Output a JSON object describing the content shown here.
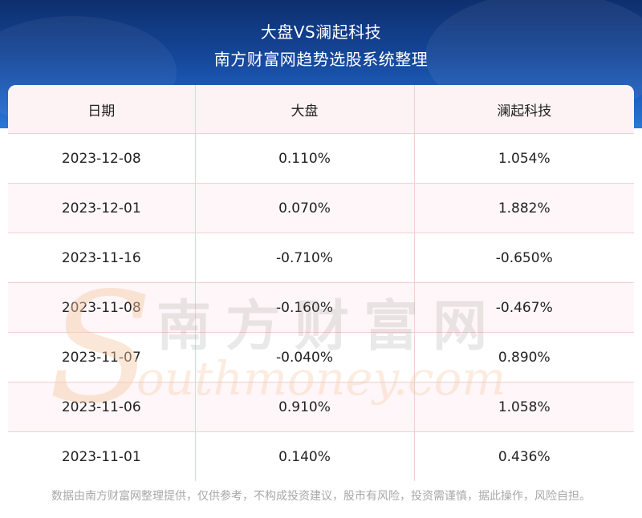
{
  "header": {
    "title_line1": "大盘VS澜起科技",
    "title_line2": "南方财富网趋势选股系统整理"
  },
  "table": {
    "columns": [
      "日期",
      "大盘",
      "澜起科技"
    ],
    "rows": [
      {
        "date": "2023-12-08",
        "market": "0.110%",
        "stock": "1.054%"
      },
      {
        "date": "2023-12-01",
        "market": "0.070%",
        "stock": "1.882%"
      },
      {
        "date": "2023-11-16",
        "market": "-0.710%",
        "stock": "-0.650%"
      },
      {
        "date": "2023-11-08",
        "market": "-0.160%",
        "stock": "-0.467%"
      },
      {
        "date": "2023-11-07",
        "market": "-0.040%",
        "stock": "0.890%"
      },
      {
        "date": "2023-11-06",
        "market": "0.910%",
        "stock": "1.058%"
      },
      {
        "date": "2023-11-01",
        "market": "0.140%",
        "stock": "0.436%"
      }
    ]
  },
  "watermark": {
    "cn": "南方财富网",
    "en": "outhmoney.com"
  },
  "footer": {
    "disclaimer": "数据由南方财富网整理提供，仅供参考，不构成投资建议，股市有风险，投资需谨慎，据此操作，风险自担。"
  },
  "colors": {
    "header_dark": "#0d2f6e",
    "header_light": "#2b77d6",
    "border": "#f0cfd3",
    "stripe": "#fdf3f5",
    "disclaimer": "#a8a8a8"
  }
}
